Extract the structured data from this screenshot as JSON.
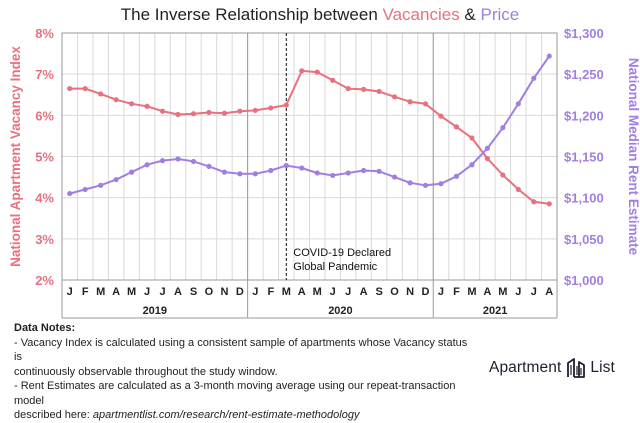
{
  "chart_data": {
    "type": "line",
    "title": {
      "prefix": "The Inverse Relationship between ",
      "vacancies": "Vacancies",
      "amp": " & ",
      "price": "Price"
    },
    "colors": {
      "vacancy": "#e8707f",
      "price": "#a17fe0",
      "grid": "#d9d9d9",
      "axis_text": "#222222",
      "title": "#222222"
    },
    "xlabels": [
      "J",
      "F",
      "M",
      "A",
      "M",
      "J",
      "J",
      "A",
      "S",
      "O",
      "N",
      "D",
      "J",
      "F",
      "M",
      "A",
      "M",
      "J",
      "J",
      "A",
      "S",
      "O",
      "N",
      "D",
      "J",
      "F",
      "M",
      "A",
      "M",
      "J",
      "J",
      "A"
    ],
    "years": [
      "2019",
      "2020",
      "2021"
    ],
    "y_left": {
      "label": "National Apartment Vacancy Index",
      "range": [
        2,
        8
      ],
      "ticks": [
        "2%",
        "3%",
        "4%",
        "5%",
        "6%",
        "7%",
        "8%"
      ]
    },
    "y_right": {
      "label": "National Median Rent Estimate",
      "range": [
        1000,
        1300
      ],
      "ticks": [
        "$1,000",
        "$1,050",
        "$1,100",
        "$1,150",
        "$1,200",
        "$1,250",
        "$1,300"
      ]
    },
    "annotation": {
      "line1": "COVID-19 Declared",
      "line2": "Global Pandemic",
      "at_index": 14.5
    },
    "series": [
      {
        "name": "Vacancy Index",
        "axis": "left",
        "values": [
          6.65,
          6.65,
          6.52,
          6.38,
          6.28,
          6.22,
          6.1,
          6.02,
          6.04,
          6.07,
          6.05,
          6.1,
          6.12,
          6.18,
          6.25,
          7.08,
          7.05,
          6.85,
          6.65,
          6.63,
          6.58,
          6.45,
          6.33,
          6.28,
          5.98,
          5.72,
          5.45,
          4.95,
          4.55,
          4.2,
          3.9,
          3.85
        ]
      },
      {
        "name": "Median Rent Estimate",
        "axis": "right",
        "values": [
          1105,
          1110,
          1115,
          1122,
          1131,
          1140,
          1145,
          1147,
          1144,
          1138,
          1131,
          1129,
          1129,
          1133,
          1139,
          1136,
          1130,
          1127,
          1130,
          1133,
          1132,
          1125,
          1118,
          1115,
          1117,
          1126,
          1140,
          1160,
          1185,
          1214,
          1245,
          1272
        ]
      }
    ]
  },
  "notes": {
    "heading": "Data Notes:",
    "line1": "- Vacancy Index is calculated using a consistent sample of apartments whose Vacancy status is",
    "line2": "continuously observable throughout the study window.",
    "line3": "- Rent Estimates are calculated as a 3-month moving average using our repeat-transaction model",
    "line4_prefix": "described here: ",
    "line4_url": "apartmentlist.com/research/rent-estimate-methodology"
  },
  "brand": {
    "word1": "Apartment",
    "word2": "List",
    "logo_icon": "apartment-list-logo-icon"
  }
}
